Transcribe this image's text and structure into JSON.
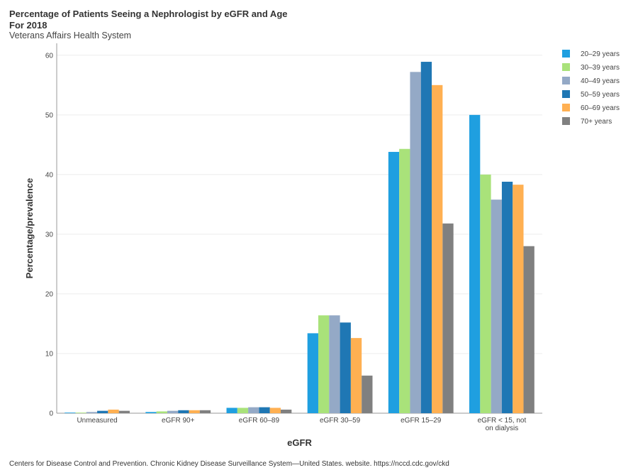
{
  "header": {
    "title_line1": "Percentage of Patients Seeing a Nephrologist by eGFR and Age",
    "title_line2": "For 2018",
    "subtitle": "Veterans Affairs Health System"
  },
  "footer": "Centers for Disease Control and Prevention. Chronic Kidney Disease Surveillance System—United States. website. https://nccd.cdc.gov/ckd",
  "chart_data": {
    "type": "bar",
    "xlabel": "eGFR",
    "ylabel": "Percentage/prevalence",
    "ylim": [
      0,
      62
    ],
    "yticks": [
      0,
      10,
      20,
      30,
      40,
      50,
      60
    ],
    "grid": true,
    "legend_position": "right",
    "categories": [
      [
        "Unmeasured"
      ],
      [
        "eGFR 90+"
      ],
      [
        "eGFR 60–89"
      ],
      [
        "eGFR 30–59"
      ],
      [
        "eGFR 15–29"
      ],
      [
        "eGFR < 15, not",
        "on dialysis"
      ]
    ],
    "series": [
      {
        "name": "20–29 years",
        "color": "#1f9fe0",
        "values": [
          0.1,
          0.2,
          0.9,
          13.4,
          43.8,
          50.0
        ]
      },
      {
        "name": "30–39 years",
        "color": "#a9e27a",
        "values": [
          0.1,
          0.3,
          0.9,
          16.4,
          44.3,
          40.0
        ]
      },
      {
        "name": "40–49 years",
        "color": "#94a9c6",
        "values": [
          0.2,
          0.4,
          1.0,
          16.4,
          57.2,
          35.8
        ]
      },
      {
        "name": "50–59 years",
        "color": "#1f77b4",
        "values": [
          0.4,
          0.5,
          1.0,
          15.2,
          58.9,
          38.8
        ]
      },
      {
        "name": "60–69 years",
        "color": "#ffb052",
        "values": [
          0.6,
          0.5,
          0.9,
          12.6,
          55.0,
          38.3
        ]
      },
      {
        "name": "70+ years",
        "color": "#808080",
        "values": [
          0.4,
          0.5,
          0.6,
          6.3,
          31.8,
          28.0
        ]
      }
    ]
  }
}
